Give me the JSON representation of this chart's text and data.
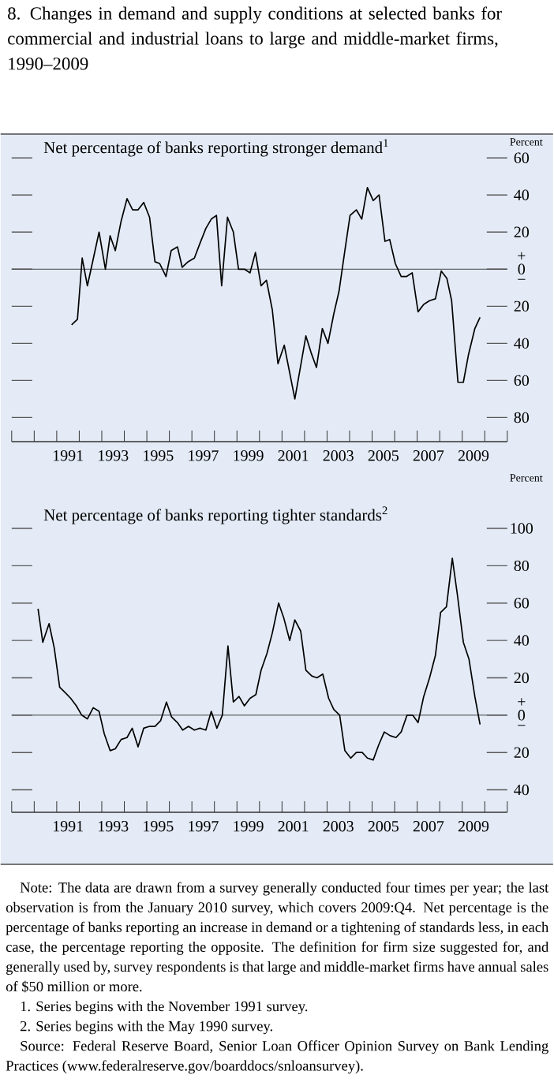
{
  "chart_data": [
    {
      "type": "line",
      "title": "8. Changes in demand and supply conditions at selected banks for commercial and industrial loans to large and middle-market firms, 1990–2009",
      "subtitle": "Net percentage of banks reporting stronger demand$^{1}$",
      "ylabel": "Percent",
      "xlim": [
        1989,
        2011
      ],
      "ylim": [
        -93,
        72
      ],
      "xticks": [
        {
          "value": 1989,
          "label": null
        },
        {
          "value": 1990,
          "label": null
        },
        {
          "value": 1991,
          "label": null
        },
        {
          "value": 1992,
          "label": null
        },
        {
          "value": 1993,
          "label": null
        },
        {
          "value": 1994,
          "label": null
        },
        {
          "value": 1995,
          "label": null
        },
        {
          "value": 1996,
          "label": null
        },
        {
          "value": 1997,
          "label": null
        },
        {
          "value": 1998,
          "label": null
        },
        {
          "value": 1999,
          "label": null
        },
        {
          "value": 2000,
          "label": null
        },
        {
          "value": 2001,
          "label": null
        },
        {
          "value": 2002,
          "label": null
        },
        {
          "value": 2003,
          "label": null
        },
        {
          "value": 2004,
          "label": null
        },
        {
          "value": 2005,
          "label": null
        },
        {
          "value": 2006,
          "label": null
        },
        {
          "value": 2007,
          "label": null
        },
        {
          "value": 2008,
          "label": null
        },
        {
          "value": 2009,
          "label": null
        },
        {
          "value": 2010,
          "label": null
        },
        {
          "value": 2011,
          "label": null
        },
        {
          "value": 1991.5,
          "label": "1991"
        },
        {
          "value": 1993.5,
          "label": "1993"
        },
        {
          "value": 1995.5,
          "label": "1995"
        },
        {
          "value": 1997.5,
          "label": "1997"
        },
        {
          "value": 1999.5,
          "label": "1999"
        },
        {
          "value": 2001.5,
          "label": "2001"
        },
        {
          "value": 2003.5,
          "label": "2003"
        },
        {
          "value": 2005.5,
          "label": "2005"
        },
        {
          "value": 2007.5,
          "label": "2007"
        },
        {
          "value": 2009.5,
          "label": "2009"
        }
      ],
      "yticks": [
        {
          "value": -80,
          "label": "80"
        },
        {
          "value": -60,
          "label": "60"
        },
        {
          "value": -40,
          "label": "40"
        },
        {
          "value": -20,
          "label": "20"
        },
        0,
        20,
        40,
        60
      ],
      "ref_lines": [
        {
          "axis": "y",
          "value": 0
        }
      ],
      "annotations": [
        "+",
        "−"
      ],
      "series": [
        {
          "color": "#000000",
          "x": [
            1991.66,
            1991.92,
            1992.13,
            1992.36,
            1992.88,
            1993.16,
            1993.37,
            1993.6,
            1993.86,
            1994.12,
            1994.37,
            1994.61,
            1994.86,
            1995.12,
            1995.36,
            1995.57,
            1995.85,
            1996.08,
            1996.36,
            1996.57,
            1996.83,
            1997.11,
            1997.36,
            1997.62,
            1997.86,
            1998.09,
            1998.32,
            1998.58,
            1998.84,
            1999.07,
            1999.33,
            1999.58,
            1999.82,
            2000.07,
            2000.31,
            2000.57,
            2000.82,
            2001.1,
            2001.31,
            2001.57,
            2001.8,
            2002.06,
            2002.29,
            2002.53,
            2002.79,
            2003.04,
            2003.3,
            2003.53,
            2003.79,
            2004.02,
            2004.3,
            2004.54,
            2004.79,
            2005.05,
            2005.31,
            2005.57,
            2005.78,
            2006.03,
            2006.29,
            2006.52,
            2006.78,
            2007.04,
            2007.29,
            2007.55,
            2007.81,
            2008.07,
            2008.32,
            2008.53,
            2008.81,
            2009.05,
            2009.28,
            2009.56,
            2009.79
          ],
          "values": [
            -30,
            -27,
            6,
            -9,
            20,
            0,
            18,
            10,
            26,
            38,
            32,
            32,
            36,
            28,
            4,
            3,
            -4,
            10,
            12,
            1,
            4,
            6,
            14,
            22,
            27,
            29,
            -9,
            28,
            20,
            0,
            0,
            -2,
            9,
            -9,
            -6,
            -22,
            -51,
            -41,
            -54,
            -70,
            -54,
            -36,
            -45,
            -53,
            -32,
            -40,
            -24,
            -12,
            10,
            29,
            32,
            27,
            44,
            37,
            40,
            15,
            16,
            3,
            -4,
            -4,
            -2,
            -23,
            -19,
            -17,
            -16,
            -1,
            -5,
            -17,
            -61,
            -61,
            -46,
            -32,
            -26
          ]
        }
      ]
    },
    {
      "type": "line",
      "title": "Net percentage of banks reporting tighter standards$^{2}$",
      "ylabel": "Percent",
      "xlim": [
        1989,
        2011
      ],
      "ylim": [
        -52,
        100
      ],
      "xticks": [
        {
          "value": 1989,
          "label": null
        },
        {
          "value": 1990,
          "label": null
        },
        {
          "value": 1991,
          "label": null
        },
        {
          "value": 1992,
          "label": null
        },
        {
          "value": 1993,
          "label": null
        },
        {
          "value": 1994,
          "label": null
        },
        {
          "value": 1995,
          "label": null
        },
        {
          "value": 1996,
          "label": null
        },
        {
          "value": 1997,
          "label": null
        },
        {
          "value": 1998,
          "label": null
        },
        {
          "value": 1999,
          "label": null
        },
        {
          "value": 2000,
          "label": null
        },
        {
          "value": 2001,
          "label": null
        },
        {
          "value": 2002,
          "label": null
        },
        {
          "value": 2003,
          "label": null
        },
        {
          "value": 2004,
          "label": null
        },
        {
          "value": 2005,
          "label": null
        },
        {
          "value": 2006,
          "label": null
        },
        {
          "value": 2007,
          "label": null
        },
        {
          "value": 2008,
          "label": null
        },
        {
          "value": 2009,
          "label": null
        },
        {
          "value": 2010,
          "label": null
        },
        {
          "value": 2011,
          "label": null
        },
        {
          "value": 1991.5,
          "label": "1991"
        },
        {
          "value": 1993.5,
          "label": "1993"
        },
        {
          "value": 1995.5,
          "label": "1995"
        },
        {
          "value": 1997.5,
          "label": "1997"
        },
        {
          "value": 1999.5,
          "label": "1999"
        },
        {
          "value": 2001.5,
          "label": "2001"
        },
        {
          "value": 2003.5,
          "label": "2003"
        },
        {
          "value": 2005.5,
          "label": "2005"
        },
        {
          "value": 2007.5,
          "label": "2007"
        },
        {
          "value": 2009.5,
          "label": "2009"
        }
      ],
      "yticks": [
        {
          "value": -40,
          "label": "40"
        },
        {
          "value": -20,
          "label": "20"
        },
        0,
        20,
        40,
        60,
        80,
        100
      ],
      "ref_lines": [
        {
          "axis": "y",
          "value": 0
        }
      ],
      "annotations": [
        "+",
        "−",
        "Note: The data are drawn from a survey generally conducted four times per year; the last observation is from the January 2010 survey, which covers 2009:Q4. Net percentage is the percentage of banks reporting an increase in demand or a tightening of standards less, in each case, the percentage reporting the opposite. The definition for firm size suggested for, and generally used by, survey respondents is that large and middle-market firms have annual sales of $50 million or more.",
        "1. Series begins with the November 1991 survey.",
        "2. Series begins with the May 1990 survey.",
        "Source: Federal Reserve Board, Senior Loan Officer Opinion Survey on Bank Lending Practices (www.federalreserve.gov/boarddocs/snloansurvey)."
      ],
      "series": [
        {
          "color": "#000000",
          "x": [
            1990.17,
            1990.38,
            1990.66,
            1990.89,
            1991.13,
            1991.38,
            1991.62,
            1991.87,
            1992.11,
            1992.36,
            1992.62,
            1992.88,
            1993.11,
            1993.37,
            1993.6,
            1993.86,
            1994.12,
            1994.35,
            1994.61,
            1994.86,
            1995.12,
            1995.36,
            1995.61,
            1995.87,
            1996.1,
            1996.36,
            1996.59,
            1996.85,
            1997.11,
            1997.36,
            1997.62,
            1997.86,
            1998.11,
            1998.35,
            1998.6,
            1998.84,
            1999.09,
            1999.33,
            1999.58,
            1999.84,
            2000.07,
            2000.33,
            2000.57,
            2000.85,
            2001.08,
            2001.34,
            2001.57,
            2001.83,
            2002.06,
            2002.32,
            2002.55,
            2002.81,
            2003.07,
            2003.3,
            2003.56,
            2003.79,
            2004.05,
            2004.3,
            2004.56,
            2004.79,
            2005.05,
            2005.29,
            2005.54,
            2005.8,
            2006.06,
            2006.29,
            2006.55,
            2006.8,
            2007.04,
            2007.29,
            2007.55,
            2007.81,
            2008.04,
            2008.3,
            2008.56,
            2008.79,
            2009.05,
            2009.3,
            2009.56,
            2009.79
          ],
          "values": [
            57,
            39,
            49,
            36,
            15,
            12,
            9,
            5,
            0,
            -2,
            4,
            2,
            -10,
            -19,
            -18,
            -13,
            -12,
            -7,
            -17,
            -7,
            -6,
            -6,
            -3,
            7,
            -1,
            -4,
            -8,
            -6,
            -8,
            -7,
            -8,
            2,
            -7,
            0,
            37,
            7,
            10,
            5,
            9,
            11,
            24,
            33,
            44,
            60,
            52,
            40,
            51,
            45,
            24,
            21,
            20,
            22,
            9,
            3,
            0,
            -19,
            -23,
            -20,
            -20,
            -23,
            -24,
            -16,
            -9,
            -11,
            -12,
            -9,
            0,
            0,
            -4,
            10,
            20,
            32,
            55,
            58,
            84,
            64,
            39,
            30,
            10,
            -5
          ]
        }
      ]
    }
  ]
}
